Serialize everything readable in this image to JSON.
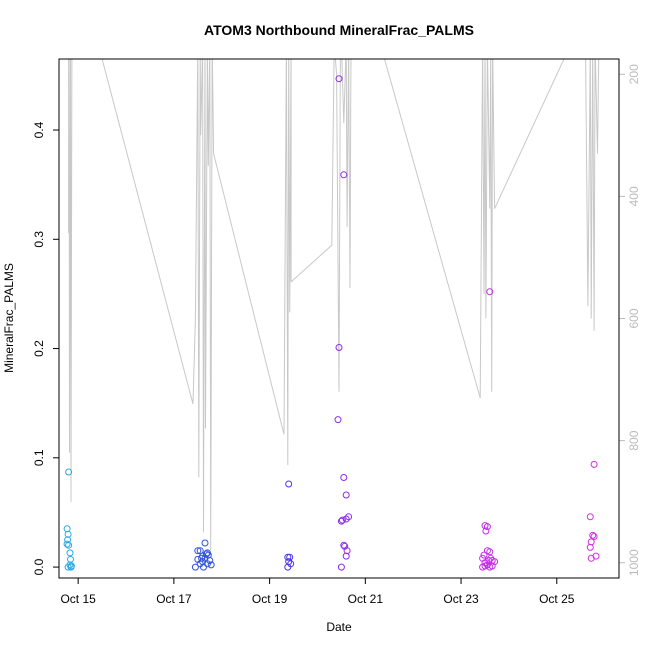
{
  "chart_data": {
    "type": "scatter",
    "title": "ATOM3 Northbound MineralFrac_PALMS",
    "xlabel": "Date",
    "ylabel": "MineralFrac_PALMS",
    "xlim": [
      14.6,
      26.3
    ],
    "ylim": [
      -0.01,
      0.465
    ],
    "x_ticks": [
      15,
      17,
      19,
      21,
      23,
      25
    ],
    "x_tick_labels": [
      "Oct 15",
      "Oct 17",
      "Oct 19",
      "Oct 21",
      "Oct 23",
      "Oct 25"
    ],
    "y_ticks": [
      0.0,
      0.1,
      0.2,
      0.3,
      0.4
    ],
    "y_tick_labels": [
      "0.0",
      "0.1",
      "0.2",
      "0.3",
      "0.4"
    ],
    "y2_lim": [
      1025,
      175
    ],
    "y2_ticks": [
      200,
      400,
      600,
      800,
      1000
    ],
    "y2_tick_labels": [
      "200",
      "400",
      "600",
      "800",
      "1000"
    ],
    "grid": false,
    "legend": "none",
    "colors": {
      "points_early": "#29a9e6",
      "points_mid": "#2f4fe0",
      "points_late": "#9b28e8",
      "points_end": "#d22ee0",
      "pressure_line": "#c8c8c8",
      "axis": "#000000",
      "axis2": "#bbbbbb"
    },
    "series": [
      {
        "role": "points",
        "color": "#29a9e6",
        "points": [
          [
            14.8,
            0.087
          ],
          [
            14.77,
            0.035
          ],
          [
            14.79,
            0.03
          ],
          [
            14.78,
            0.025
          ],
          [
            14.77,
            0.021
          ],
          [
            14.8,
            0.02
          ],
          [
            14.83,
            0.013
          ],
          [
            14.84,
            0.007
          ],
          [
            14.79,
            0.0
          ],
          [
            14.85,
            0.0
          ],
          [
            14.83,
            0.002
          ],
          [
            14.86,
            0.001
          ]
        ]
      },
      {
        "role": "points",
        "color": "#2f4fe0",
        "points": [
          [
            17.45,
            0.0
          ],
          [
            17.5,
            0.007
          ],
          [
            17.5,
            0.015
          ],
          [
            17.55,
            0.015
          ],
          [
            17.55,
            0.003
          ],
          [
            17.6,
            0.005
          ],
          [
            17.6,
            0.01
          ],
          [
            17.65,
            0.022
          ],
          [
            17.65,
            0.008
          ],
          [
            17.7,
            0.013
          ],
          [
            17.7,
            0.003
          ],
          [
            17.72,
            0.011
          ],
          [
            17.75,
            0.006
          ],
          [
            17.78,
            0.002
          ],
          [
            17.62,
            0.0
          ],
          [
            17.68,
            0.012
          ],
          [
            17.58,
            0.008
          ]
        ]
      },
      {
        "role": "points",
        "color": "#4a36e6",
        "points": [
          [
            19.4,
            0.076
          ],
          [
            19.38,
            0.009
          ],
          [
            19.42,
            0.009
          ],
          [
            19.4,
            0.005
          ],
          [
            19.38,
            0.0
          ],
          [
            19.44,
            0.003
          ]
        ]
      },
      {
        "role": "points",
        "color": "#8f2ce8",
        "points": [
          [
            20.45,
            0.447
          ],
          [
            20.55,
            0.359
          ],
          [
            20.45,
            0.201
          ],
          [
            20.43,
            0.135
          ],
          [
            20.55,
            0.082
          ],
          [
            20.6,
            0.066
          ],
          [
            20.65,
            0.046
          ],
          [
            20.6,
            0.044
          ],
          [
            20.5,
            0.042
          ],
          [
            20.52,
            0.043
          ],
          [
            20.55,
            0.02
          ],
          [
            20.57,
            0.019
          ],
          [
            20.62,
            0.015
          ],
          [
            20.6,
            0.01
          ],
          [
            20.5,
            0.0
          ]
        ]
      },
      {
        "role": "points",
        "color": "#c22fe6",
        "points": [
          [
            23.6,
            0.252
          ],
          [
            23.5,
            0.038
          ],
          [
            23.55,
            0.037
          ],
          [
            23.52,
            0.033
          ],
          [
            23.48,
            0.011
          ],
          [
            23.55,
            0.015
          ],
          [
            23.6,
            0.014
          ],
          [
            23.45,
            0.008
          ],
          [
            23.62,
            0.008
          ],
          [
            23.58,
            0.006
          ],
          [
            23.65,
            0.006
          ],
          [
            23.7,
            0.005
          ],
          [
            23.5,
            0.004
          ],
          [
            23.55,
            0.002
          ],
          [
            23.45,
            0.0
          ],
          [
            23.6,
            0.0
          ],
          [
            23.65,
            0.001
          ],
          [
            23.5,
            0.001
          ]
        ]
      },
      {
        "role": "points",
        "color": "#d22ee0",
        "points": [
          [
            25.78,
            0.094
          ],
          [
            25.7,
            0.046
          ],
          [
            25.75,
            0.029
          ],
          [
            25.78,
            0.028
          ],
          [
            25.72,
            0.023
          ],
          [
            25.7,
            0.018
          ],
          [
            25.82,
            0.01
          ],
          [
            25.72,
            0.008
          ]
        ]
      },
      {
        "role": "pressure",
        "color": "#c8c8c8",
        "path_segments": [
          [
            [
              14.8,
              150
            ],
            [
              14.8,
              460
            ],
            [
              14.81,
              150
            ],
            [
              14.82,
              820
            ],
            [
              14.84,
              150
            ],
            [
              14.85,
              900
            ],
            [
              14.87,
              150
            ],
            [
              14.87,
              200
            ]
          ],
          [
            [
              15.5,
              175
            ],
            [
              17.4,
              740
            ]
          ],
          [
            [
              17.4,
              740
            ],
            [
              17.45,
              600
            ],
            [
              17.5,
              150
            ],
            [
              17.52,
              860
            ],
            [
              17.55,
              150
            ],
            [
              17.56,
              300
            ],
            [
              17.6,
              150
            ],
            [
              17.62,
              950
            ],
            [
              17.65,
              150
            ],
            [
              17.66,
              780
            ],
            [
              17.7,
              150
            ],
            [
              17.72,
              350
            ],
            [
              17.75,
              150
            ],
            [
              17.77,
              980
            ],
            [
              17.8,
              150
            ],
            [
              17.83,
              330
            ]
          ],
          [
            [
              17.83,
              330
            ],
            [
              19.3,
              790
            ]
          ],
          [
            [
              19.3,
              790
            ],
            [
              19.35,
              150
            ],
            [
              19.38,
              840
            ],
            [
              19.4,
              150
            ],
            [
              19.42,
              590
            ],
            [
              19.45,
              150
            ],
            [
              19.45,
              540
            ]
          ],
          [
            [
              19.45,
              540
            ],
            [
              20.3,
              480
            ]
          ],
          [
            [
              20.3,
              480
            ],
            [
              20.35,
              150
            ],
            [
              20.4,
              200
            ],
            [
              20.45,
              720
            ],
            [
              20.48,
              150
            ],
            [
              20.5,
              150
            ],
            [
              20.55,
              280
            ],
            [
              20.6,
              150
            ],
            [
              20.62,
              450
            ],
            [
              20.65,
              150
            ],
            [
              20.68,
              550
            ],
            [
              20.7,
              150
            ]
          ],
          [
            [
              21.4,
              175
            ],
            [
              23.4,
              730
            ]
          ],
          [
            [
              23.4,
              730
            ],
            [
              23.45,
              150
            ],
            [
              23.48,
              560
            ],
            [
              23.5,
              150
            ],
            [
              23.52,
              600
            ],
            [
              23.55,
              150
            ],
            [
              23.6,
              420
            ],
            [
              23.62,
              150
            ],
            [
              23.64,
              720
            ],
            [
              23.66,
              150
            ],
            [
              23.7,
              420
            ]
          ],
          [
            [
              23.7,
              420
            ],
            [
              25.3,
              150
            ]
          ],
          [
            [
              25.6,
              150
            ],
            [
              25.65,
              580
            ],
            [
              25.7,
              150
            ],
            [
              25.72,
              600
            ],
            [
              25.75,
              150
            ],
            [
              25.78,
              620
            ],
            [
              25.8,
              150
            ],
            [
              25.85,
              330
            ],
            [
              25.88,
              150
            ]
          ]
        ]
      }
    ]
  }
}
